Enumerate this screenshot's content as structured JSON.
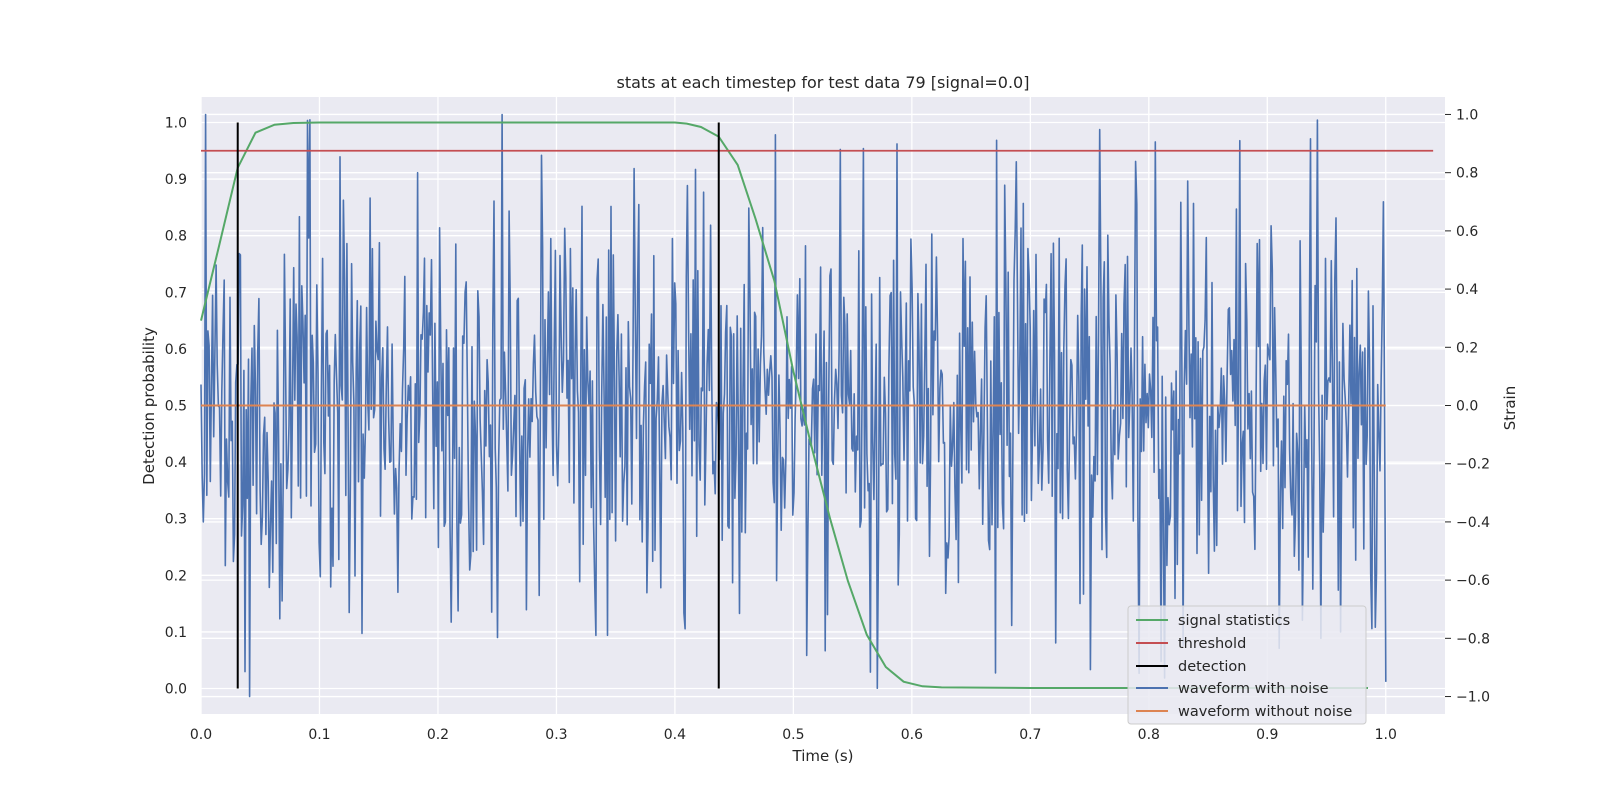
{
  "chart_data": {
    "type": "line",
    "title": "stats at each timestep for test data 79 [signal=0.0]",
    "xlabel": "Time (s)",
    "ylabel_left": "Detection probability",
    "ylabel_right": "Strain",
    "xlim": [
      0.0,
      1.05
    ],
    "ylim_left": [
      -0.045,
      1.045
    ],
    "ylim_right": [
      -1.06,
      1.06
    ],
    "x_ticks": [
      "0.0",
      "0.1",
      "0.2",
      "0.3",
      "0.4",
      "0.5",
      "0.6",
      "0.7",
      "0.8",
      "0.9",
      "1.0"
    ],
    "y_ticks_left": [
      "0.0",
      "0.1",
      "0.2",
      "0.3",
      "0.4",
      "0.5",
      "0.6",
      "0.7",
      "0.8",
      "0.9",
      "1.0"
    ],
    "y_ticks_right": [
      "−1.0",
      "−0.8",
      "−0.6",
      "−0.4",
      "−0.2",
      "0.0",
      "0.2",
      "0.4",
      "0.6",
      "0.8",
      "1.0"
    ],
    "grid": true,
    "legend_position": "lower-right",
    "colors": {
      "signal_statistics": "#55a868",
      "threshold": "#c44e52",
      "detection": "#000000",
      "waveform_noise": "#4c72b0",
      "waveform_clean": "#dd8452",
      "plot_bg": "#eaeaf2",
      "grid": "#ffffff"
    },
    "series": [
      {
        "name": "signal statistics",
        "axis": "left",
        "x": [
          0.0,
          0.015,
          0.031,
          0.046,
          0.062,
          0.078,
          0.1,
          0.2,
          0.3,
          0.4,
          0.41,
          0.422,
          0.437,
          0.453,
          0.468,
          0.484,
          0.5,
          0.515,
          0.531,
          0.546,
          0.562,
          0.578,
          0.593,
          0.609,
          0.625,
          0.7,
          0.8,
          0.9,
          0.985
        ],
        "y": [
          0.65,
          0.78,
          0.92,
          0.982,
          0.996,
          0.999,
          1.0,
          1.0,
          1.0,
          1.0,
          0.998,
          0.992,
          0.975,
          0.925,
          0.83,
          0.72,
          0.56,
          0.43,
          0.3,
          0.19,
          0.095,
          0.038,
          0.012,
          0.004,
          0.002,
          0.001,
          0.001,
          0.001,
          0.001
        ]
      },
      {
        "name": "threshold",
        "axis": "left",
        "x": [
          0.0,
          1.04
        ],
        "y": [
          0.95,
          0.95
        ]
      },
      {
        "name": "detection",
        "axis": "left",
        "x_positions": [
          0.031,
          0.437
        ],
        "y_range": [
          0.0,
          1.0
        ]
      },
      {
        "name": "waveform with noise",
        "axis": "right",
        "x_range": [
          0.0,
          1.0
        ],
        "n_samples": 1024,
        "y_range_observed": [
          -1.0,
          1.0
        ],
        "y_mean": 0.0,
        "y_std": 0.36,
        "peaks": [
          {
            "x": 0.004,
            "y": 1.0
          },
          {
            "x": 0.002,
            "y": -0.4
          },
          {
            "x": 0.0415,
            "y": -1.0
          },
          {
            "x": 0.485,
            "y": 0.93
          },
          {
            "x": 0.877,
            "y": 0.91
          },
          {
            "x": 0.333,
            "y": -0.79
          },
          {
            "x": 0.54,
            "y": 0.88
          },
          {
            "x": 0.792,
            "y": -0.92
          },
          {
            "x": 0.183,
            "y": 0.8
          },
          {
            "x": 0.998,
            "y": 0.7
          }
        ]
      },
      {
        "name": "waveform without noise",
        "axis": "right",
        "x": [
          0.0,
          1.0
        ],
        "y": [
          0.0,
          0.0
        ]
      }
    ],
    "legend": [
      "signal statistics",
      "threshold",
      "detection",
      "waveform with noise",
      "waveform without noise"
    ]
  }
}
